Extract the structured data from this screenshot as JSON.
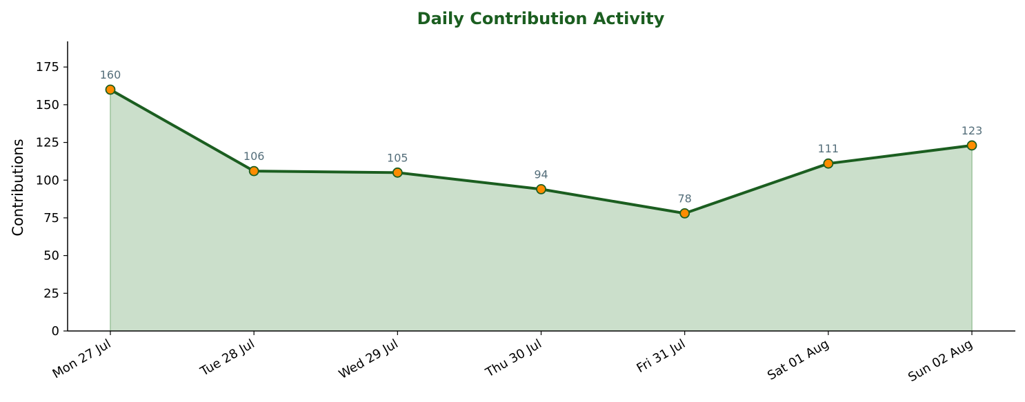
{
  "chart_data": {
    "type": "area",
    "title": "Daily Contribution Activity",
    "xlabel": "",
    "ylabel": "Contributions",
    "categories": [
      "Mon 27 Jul",
      "Tue 28 Jul",
      "Wed 29 Jul",
      "Thu 30 Jul",
      "Fri 31 Jul",
      "Sat 01 Aug",
      "Sun 02 Aug"
    ],
    "values": [
      160,
      106,
      105,
      94,
      78,
      111,
      123
    ],
    "ylim": [
      0,
      192
    ],
    "yticks": [
      0,
      25,
      50,
      75,
      100,
      125,
      150,
      175
    ],
    "grid": false,
    "data_labels": true,
    "colors": {
      "title": "#1b5e20",
      "line": "#1b5e20",
      "fill": "#cbdfcb",
      "fill_edge": "#9cc49c",
      "marker": "#ff8c00",
      "marker_edge": "#1b5e20",
      "data_label": "#546e7a",
      "axis": "#000000"
    }
  }
}
